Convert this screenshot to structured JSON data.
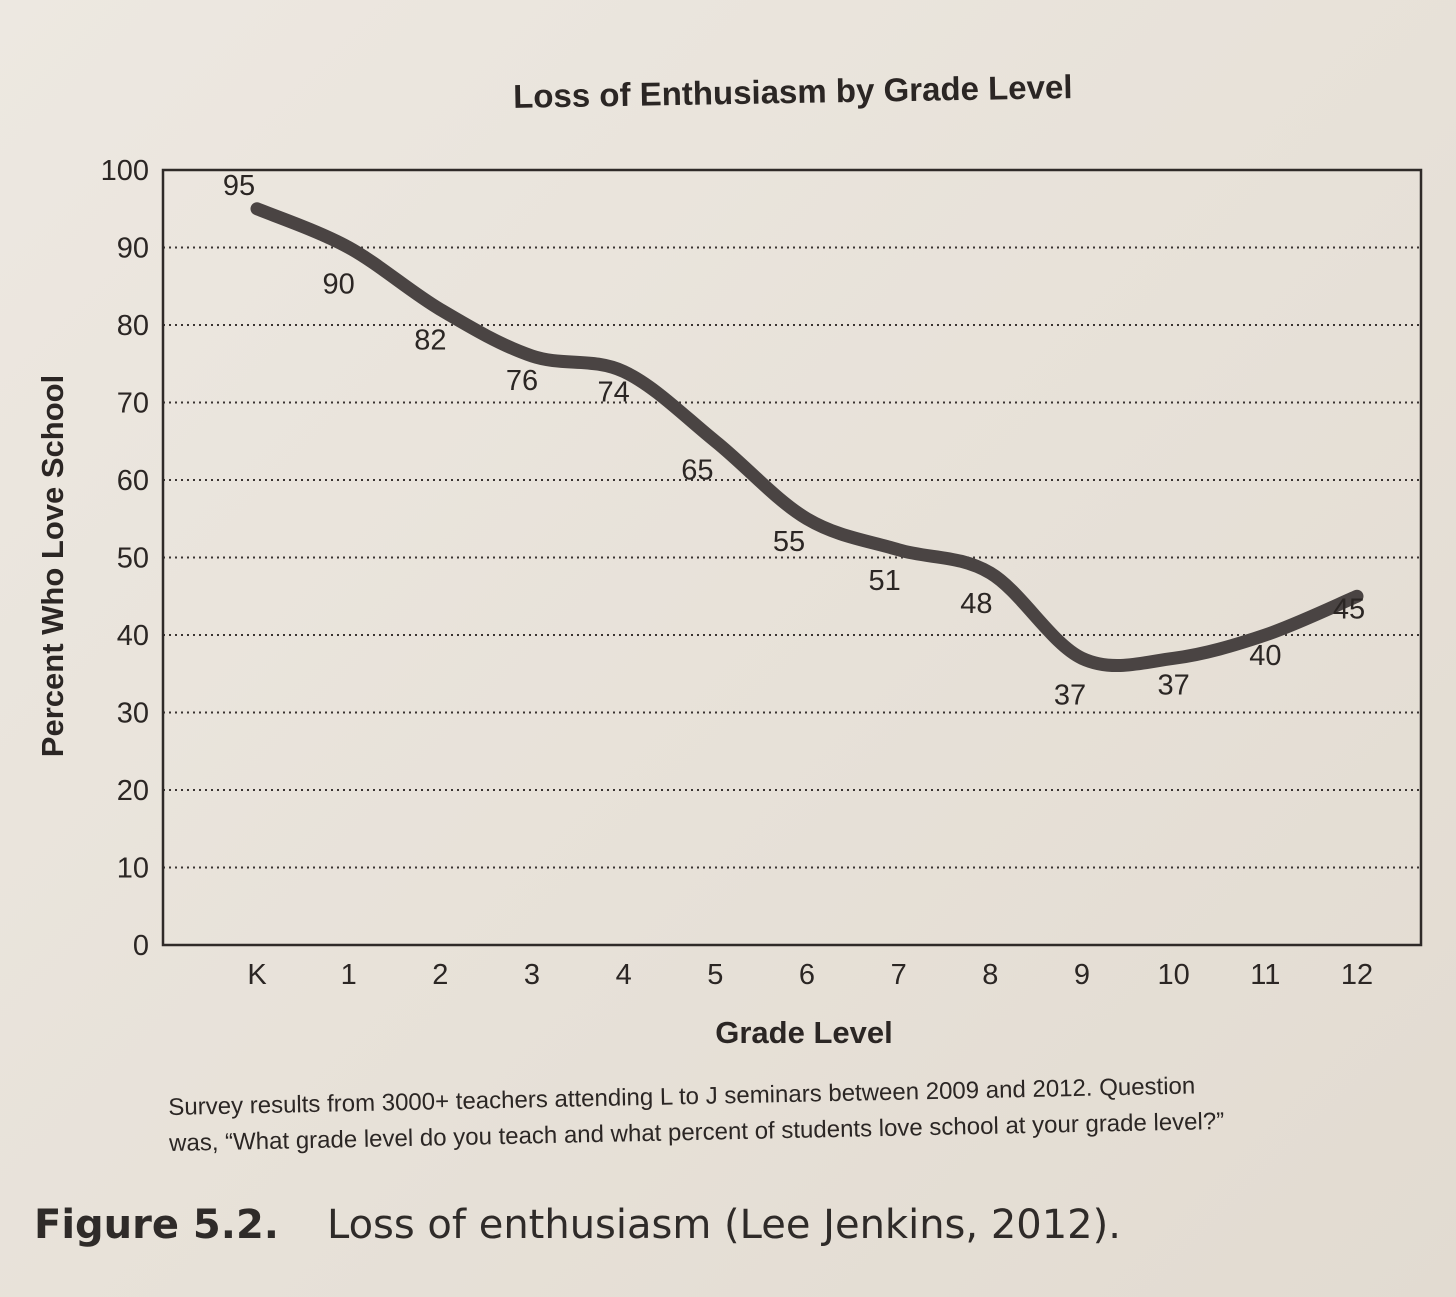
{
  "chart_data": {
    "type": "line",
    "title": "Loss of Enthusiasm by Grade Level",
    "xlabel": "Grade Level",
    "ylabel": "Percent Who Love School",
    "categories": [
      "K",
      "1",
      "2",
      "3",
      "4",
      "5",
      "6",
      "7",
      "8",
      "9",
      "10",
      "11",
      "12"
    ],
    "values": [
      95,
      90,
      82,
      76,
      74,
      65,
      55,
      51,
      48,
      37,
      37,
      40,
      45
    ],
    "data_labels": [
      "95",
      "90",
      "82",
      "76",
      "74",
      "65",
      "55",
      "51",
      "48",
      "37",
      "37",
      "40",
      "45"
    ],
    "ylim": [
      0,
      100
    ],
    "yticks": [
      "0",
      "10",
      "20",
      "30",
      "40",
      "50",
      "60",
      "70",
      "80",
      "90",
      "100"
    ],
    "grid": "horizontal dotted",
    "line_color": "#4a4443"
  },
  "caption": {
    "line1": "Survey results from 3000+ teachers attending L to J seminars between 2009 and 2012. Question",
    "line2": "was, “What grade level do you teach and what percent of students love school at your grade level?”"
  },
  "figure": {
    "number": "Figure 5.2.",
    "text": "Loss of enthusiasm (Lee Jenkins, 2012)."
  }
}
